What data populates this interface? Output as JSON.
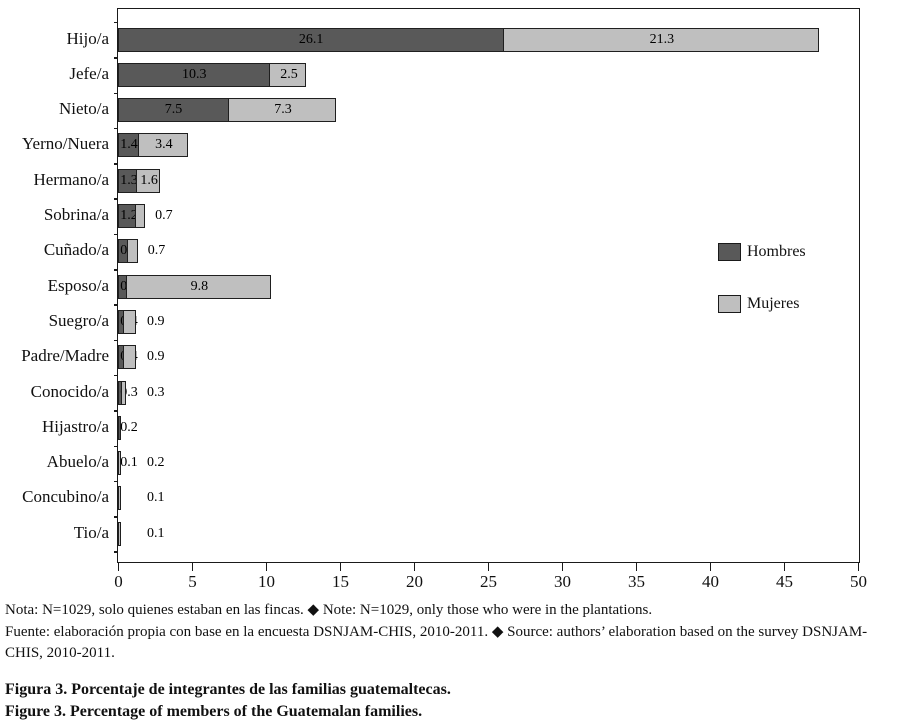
{
  "chart_data": {
    "type": "bar",
    "orientation": "horizontal",
    "stacked": true,
    "grid": false,
    "categories": [
      "Hijo/a",
      "Jefe/a",
      "Nieto/a",
      "Yerno/Nuera",
      "Hermano/a",
      "Sobrina/a",
      "Cuñado/a",
      "Esposo/a",
      "Suegro/a",
      "Padre/Madre",
      "Conocido/a",
      "Hijastro/a",
      "Abuelo/a",
      "Concubino/a",
      "Tio/a"
    ],
    "series": [
      {
        "name": "Hombres",
        "color": "#595959",
        "values": [
          26.1,
          10.3,
          7.5,
          1.4,
          1.3,
          1.2,
          0.7,
          0.6,
          0.4,
          0.4,
          0.3,
          0.2,
          0.1,
          null,
          null
        ]
      },
      {
        "name": "Mujeres",
        "color": "#bfbfbf",
        "values": [
          21.3,
          2.5,
          7.3,
          3.4,
          1.6,
          0.7,
          0.7,
          9.8,
          0.9,
          0.9,
          0.3,
          null,
          0.2,
          0.1,
          0.1
        ]
      }
    ],
    "xlim": [
      0,
      50
    ],
    "x_ticks": [
      0,
      5,
      10,
      15,
      20,
      25,
      30,
      35,
      40,
      45,
      50
    ],
    "legend_position": "inside-right"
  },
  "legend": {
    "hombres": "Hombres",
    "mujeres": "Mujeres"
  },
  "notes": {
    "nota": "Nota: N=1029, solo quienes estaban en las fincas. ◆ Note: N=1029, only those who were in the plantations.",
    "fuente": "Fuente: elaboración propia con base en la encuesta DSNJAM-CHIS, 2010-2011. ◆ Source: authors’ elaboration based on the survey DSNJAM-CHIS, 2010-2011."
  },
  "caption": {
    "es": "Figura 3. Porcentaje de integrantes de las familias guatemaltecas.",
    "en": "Figure 3. Percentage of members of the Guatemalan families."
  },
  "colors": {
    "hombres_fill": "#595959",
    "mujeres_fill": "#bfbfbf",
    "bar_border": "#1f1f1f",
    "plot_border": "#1a1a1a",
    "text": "#111111",
    "background": "#ffffff"
  }
}
